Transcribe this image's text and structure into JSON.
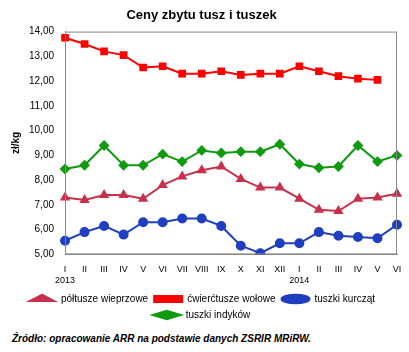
{
  "chart_data": {
    "type": "line",
    "title": "Ceny zbytu tusz i tuszek",
    "y_label": "zł/kg",
    "source": "Źródło: opracowanie ARR na podstawie danych ZSRIR MRiRW.",
    "categories": [
      "I 2013",
      "II",
      "III",
      "IV",
      "V",
      "VI",
      "VII",
      "VIII",
      "IX",
      "X",
      "XI",
      "XII",
      "I 2014",
      "II",
      "III",
      "IV",
      "V",
      "VI"
    ],
    "series": [
      {
        "name": "półtusze wieprzowe",
        "color": "#c8304c",
        "marker": "triangle",
        "values": [
          7.3,
          7.2,
          7.4,
          7.4,
          7.25,
          7.8,
          8.15,
          8.4,
          8.55,
          8.05,
          7.7,
          7.7,
          7.25,
          6.8,
          6.75,
          7.25,
          7.3,
          7.45
        ]
      },
      {
        "name": "ćwierćtusze wołowe",
        "color": "#ff0000",
        "marker": "square",
        "values": [
          13.75,
          13.5,
          13.2,
          13.05,
          12.55,
          12.6,
          12.3,
          12.3,
          12.4,
          12.25,
          12.3,
          12.3,
          12.6,
          12.4,
          12.2,
          12.1,
          12.05,
          null
        ]
      },
      {
        "name": "tuszki kurcząt",
        "color": "#1f3fc0",
        "marker": "circle",
        "values": [
          5.55,
          5.9,
          6.15,
          5.8,
          6.3,
          6.3,
          6.45,
          6.45,
          6.15,
          5.35,
          5.05,
          5.45,
          5.45,
          5.9,
          5.75,
          5.7,
          5.65,
          6.2
        ]
      },
      {
        "name": "tuszki indyków",
        "color": "#109a10",
        "marker": "diamond",
        "values": [
          8.45,
          8.6,
          9.4,
          8.6,
          8.6,
          9.05,
          8.75,
          9.2,
          9.1,
          9.15,
          9.15,
          9.45,
          8.65,
          8.5,
          8.55,
          9.4,
          8.75,
          9.0
        ]
      }
    ],
    "ylim": [
      5,
      14
    ],
    "yticks": [
      {
        "value": 5,
        "label": "5,00"
      },
      {
        "value": 6,
        "label": "6,00"
      },
      {
        "value": 7,
        "label": "7,00"
      },
      {
        "value": 8,
        "label": "8,00"
      },
      {
        "value": 9,
        "label": "9,00"
      },
      {
        "value": 10,
        "label": "10,00"
      },
      {
        "value": 11,
        "label": "11,00"
      },
      {
        "value": 12,
        "label": "12,00"
      },
      {
        "value": 13,
        "label": "13,00"
      },
      {
        "value": 14,
        "label": "14,00"
      }
    ],
    "grid": false,
    "legend": "bottom"
  }
}
